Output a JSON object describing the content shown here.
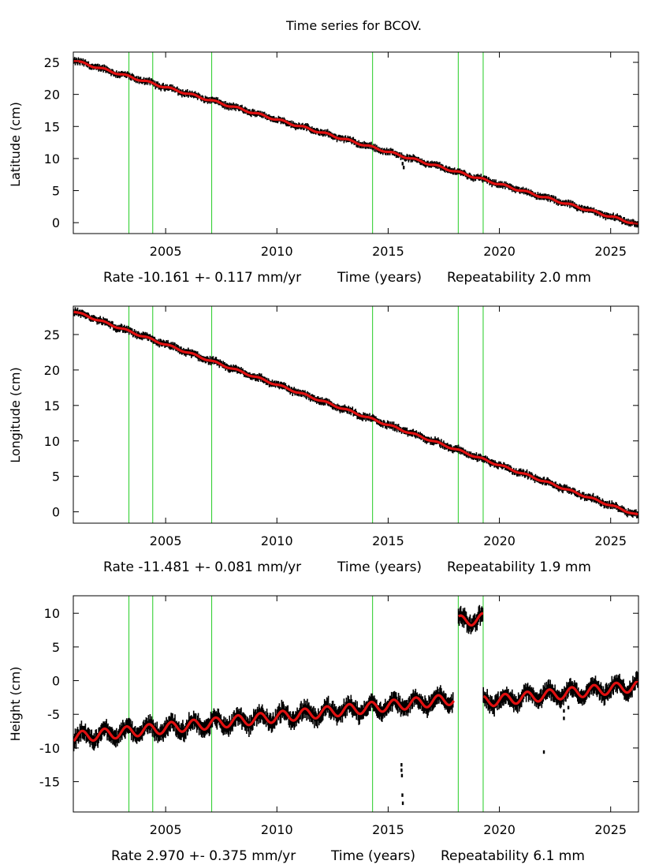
{
  "title": "Time series for BCOV.",
  "chart_data": [
    {
      "type": "scatter",
      "ylabel": "Latitude (cm)",
      "xlabel": "Time (years)",
      "rate_text": "Rate -10.161 +- 0.117 mm/yr",
      "repeatability_text": "Repeatability 2.0 mm",
      "xlim": [
        2000.85,
        2026.25
      ],
      "ylim": [
        -1.7,
        26.6
      ],
      "xticks": [
        2005,
        2010,
        2015,
        2020,
        2025
      ],
      "yticks": [
        0,
        5,
        10,
        15,
        20,
        25
      ],
      "breaks": [
        2003.35,
        2004.42,
        2007.07,
        2014.3,
        2018.15,
        2019.27
      ],
      "model": {
        "start": 25.3,
        "end": -0.3,
        "amplitude": 0.15,
        "offsets": []
      },
      "series": [
        {
          "name": "observations",
          "color": "#000000"
        },
        {
          "name": "model fit",
          "color": "#e01010"
        }
      ],
      "outliers": [
        {
          "x": 2015.65,
          "y": 9.2
        },
        {
          "x": 2015.7,
          "y": 8.6
        }
      ]
    },
    {
      "type": "scatter",
      "ylabel": "Longitude (cm)",
      "xlabel": "Time (years)",
      "rate_text": "Rate -11.481 +- 0.081 mm/yr",
      "repeatability_text": "Repeatability 1.9 mm",
      "xlim": [
        2000.85,
        2026.25
      ],
      "ylim": [
        -1.6,
        29.0
      ],
      "xticks": [
        2005,
        2010,
        2015,
        2020,
        2025
      ],
      "yticks": [
        0,
        5,
        10,
        15,
        20,
        25
      ],
      "breaks": [
        2003.35,
        2004.42,
        2007.07,
        2014.3,
        2018.15,
        2019.27
      ],
      "model": {
        "start": 28.3,
        "end": -0.5,
        "amplitude": 0.12,
        "offsets": []
      },
      "series": [
        {
          "name": "observations",
          "color": "#000000"
        },
        {
          "name": "model fit",
          "color": "#e01010"
        }
      ],
      "outliers": []
    },
    {
      "type": "scatter",
      "ylabel": "Height (cm)",
      "xlabel": "Time (years)",
      "rate_text": "Rate 2.970 +- 0.375 mm/yr",
      "repeatability_text": "Repeatability 6.1 mm",
      "xlim": [
        2000.85,
        2026.25
      ],
      "ylim": [
        -19.5,
        12.6
      ],
      "xticks": [
        2005,
        2010,
        2015,
        2020,
        2025
      ],
      "yticks": [
        -15,
        -10,
        -5,
        0,
        5,
        10
      ],
      "breaks": [
        2003.35,
        2004.42,
        2007.07,
        2014.3,
        2018.15,
        2019.27
      ],
      "model": {
        "start": -8.4,
        "end": 0.0,
        "amplitude": 0.8,
        "offsets": [
          {
            "from": 2018.15,
            "to": 2019.27,
            "delta": 11.5
          },
          {
            "from": 2019.27,
            "to": 2026.25,
            "delta": -0.8
          }
        ],
        "gap": [
          2017.95,
          2018.15
        ]
      },
      "series": [
        {
          "name": "observations",
          "color": "#000000"
        },
        {
          "name": "model fit",
          "color": "#e01010"
        }
      ],
      "outliers": [
        {
          "x": 2015.6,
          "y": -12.5
        },
        {
          "x": 2015.6,
          "y": -13.3
        },
        {
          "x": 2015.62,
          "y": -14.1
        },
        {
          "x": 2015.64,
          "y": -17.0
        },
        {
          "x": 2015.66,
          "y": -18.2
        },
        {
          "x": 2022.0,
          "y": -10.6
        },
        {
          "x": 2022.9,
          "y": -5.6
        },
        {
          "x": 2022.9,
          "y": -4.5
        },
        {
          "x": 2023.1,
          "y": -4.0
        }
      ]
    }
  ]
}
